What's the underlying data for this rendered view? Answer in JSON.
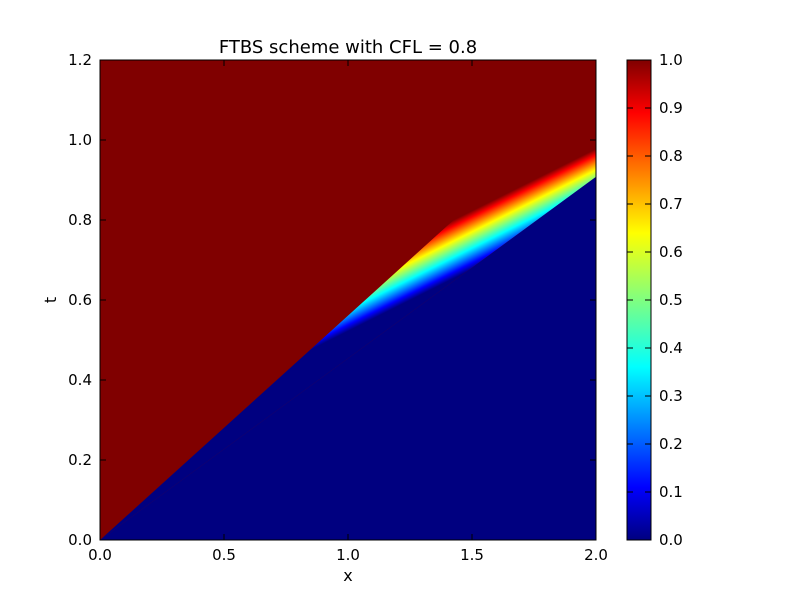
{
  "chart_data": {
    "type": "heatmap",
    "title": "FTBS scheme with CFL = 0.8",
    "xlabel": "x",
    "ylabel": "t",
    "xlim": [
      0.0,
      2.0
    ],
    "ylim": [
      0.0,
      1.2
    ],
    "xticks": [
      "0.0",
      "0.5",
      "1.0",
      "1.5",
      "2.0"
    ],
    "yticks": [
      "0.0",
      "0.2",
      "0.4",
      "0.6",
      "0.8",
      "1.0",
      "1.2"
    ],
    "colormap": "jet",
    "colorbar": {
      "range": [
        0.0,
        1.0
      ],
      "ticks": [
        "0.0",
        "0.1",
        "0.2",
        "0.3",
        "0.4",
        "0.5",
        "0.6",
        "0.7",
        "0.8",
        "0.9",
        "1.0"
      ]
    },
    "field": {
      "description_values": "u(x,t) = 1 above the front, 0 below it",
      "front_speed": 2.0,
      "upper_region_value": 1.0,
      "lower_region_value": 0.0
    },
    "grid": false
  },
  "colors": {
    "jet_dark_red": "#800000",
    "jet_red": "#ff0000",
    "jet_yellow": "#ffff00",
    "jet_cyan": "#00ffff",
    "jet_blue": "#0000ff",
    "jet_dark_blue": "#000080"
  }
}
